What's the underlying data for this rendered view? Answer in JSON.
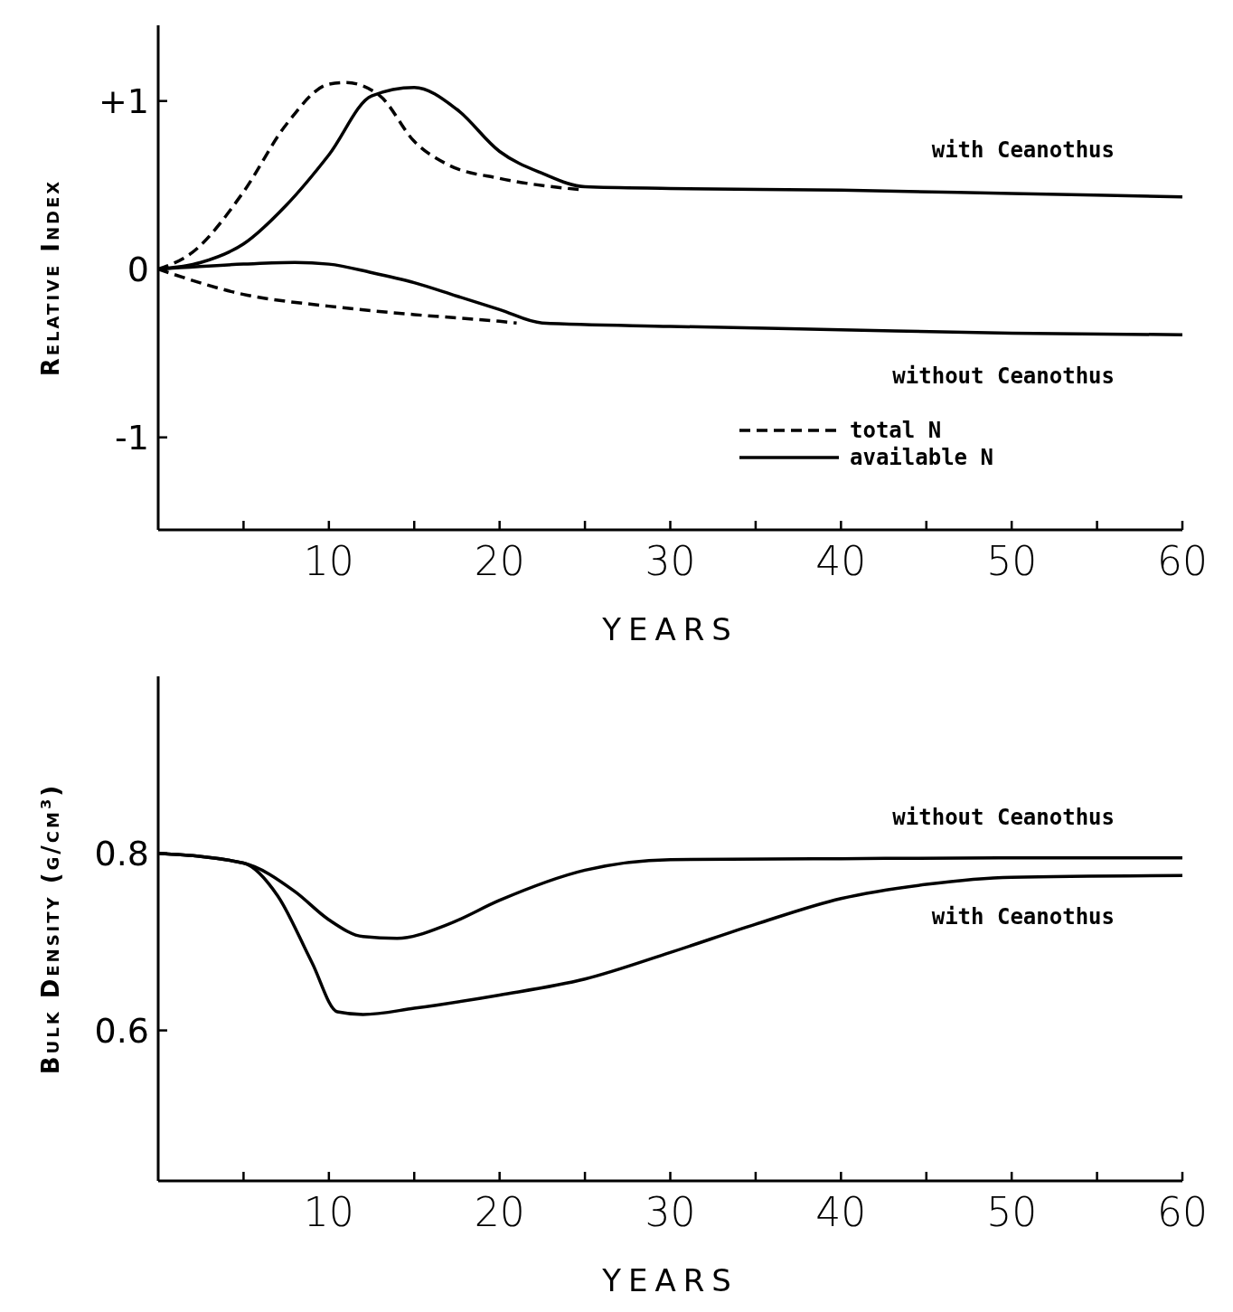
{
  "chart_data": [
    {
      "type": "line",
      "ylabel": "Relative Index",
      "xlabel": "YEARS",
      "xlim": [
        0,
        60
      ],
      "xticks": [
        {
          "value": 5,
          "label": null
        },
        10,
        {
          "value": 15,
          "label": null
        },
        20,
        {
          "value": 25,
          "label": null
        },
        30,
        {
          "value": 35,
          "label": null
        },
        40,
        {
          "value": 45,
          "label": null
        },
        50,
        {
          "value": 55,
          "label": null
        },
        60
      ],
      "ylim": [
        -1.55,
        1.45
      ],
      "yticks": [
        {
          "value": 1,
          "label": "+1"
        },
        0,
        -1
      ],
      "legend": "bottom right",
      "series": [
        {
          "name": "total N",
          "color": "#000000",
          "line_style": "dashed",
          "x": [
            0,
            2,
            5,
            7.5,
            10,
            11,
            13,
            15,
            17,
            20,
            25
          ],
          "values": [
            0,
            0.1,
            0.46,
            0.86,
            1.1,
            1.11,
            1.03,
            0.76,
            0.62,
            0.54,
            0.47
          ]
        },
        {
          "name": "available N",
          "color": "#000000",
          "line_style": "solid",
          "x": [
            0,
            2.5,
            5,
            7.5,
            10,
            12.5,
            15,
            17.5,
            20,
            22.5,
            25,
            30,
            40,
            50,
            60
          ],
          "values": [
            0,
            0.04,
            0.15,
            0.38,
            0.68,
            1.03,
            1.08,
            0.95,
            0.7,
            0.57,
            0.49,
            0.48,
            0.47,
            0.45,
            0.43
          ]
        },
        {
          "color": "#000000",
          "line_style": "dashed",
          "x": [
            0,
            5,
            10,
            15,
            20,
            21
          ],
          "values": [
            0,
            -0.15,
            -0.22,
            -0.27,
            -0.31,
            -0.32
          ]
        },
        {
          "color": "#000000",
          "line_style": "solid",
          "x": [
            0,
            5,
            8,
            10,
            12.5,
            15,
            17.5,
            20,
            22.5,
            30,
            40,
            50,
            60
          ],
          "values": [
            0,
            0.03,
            0.04,
            0.03,
            -0.02,
            -0.08,
            -0.16,
            -0.24,
            -0.32,
            -0.34,
            -0.36,
            -0.38,
            -0.39
          ]
        }
      ],
      "annotations": [
        "with Ceanothus",
        "without Ceanothus"
      ]
    },
    {
      "type": "line",
      "ylabel": "Bulk Density (g/cm³)",
      "xlabel": "YEARS",
      "xlim": [
        0,
        60
      ],
      "xticks": [
        {
          "value": 5,
          "label": null
        },
        10,
        {
          "value": 15,
          "label": null
        },
        20,
        {
          "value": 25,
          "label": null
        },
        30,
        {
          "value": 35,
          "label": null
        },
        40,
        {
          "value": 45,
          "label": null
        },
        50,
        {
          "value": 55,
          "label": null
        },
        60
      ],
      "ylim": [
        0.43,
        1.0
      ],
      "yticks": [
        0.8,
        0.6
      ],
      "series": [
        {
          "color": "#000000",
          "line_style": "solid",
          "x": [
            0,
            5,
            8,
            10,
            12,
            14,
            17,
            20,
            25,
            30,
            40,
            50,
            60
          ],
          "values": [
            0.8,
            0.789,
            0.757,
            0.725,
            0.706,
            0.704,
            0.72,
            0.747,
            0.781,
            0.793,
            0.794,
            0.795,
            0.795
          ]
        },
        {
          "color": "#000000",
          "line_style": "solid",
          "x": [
            0,
            5,
            7,
            9,
            10.5,
            12,
            15,
            20,
            25,
            30,
            35,
            40,
            45,
            50,
            60
          ],
          "values": [
            0.8,
            0.789,
            0.752,
            0.677,
            0.621,
            0.618,
            0.625,
            0.64,
            0.658,
            0.688,
            0.72,
            0.749,
            0.765,
            0.773,
            0.775
          ]
        }
      ],
      "annotations": [
        "without Ceanothus",
        "with Ceanothus"
      ]
    }
  ]
}
